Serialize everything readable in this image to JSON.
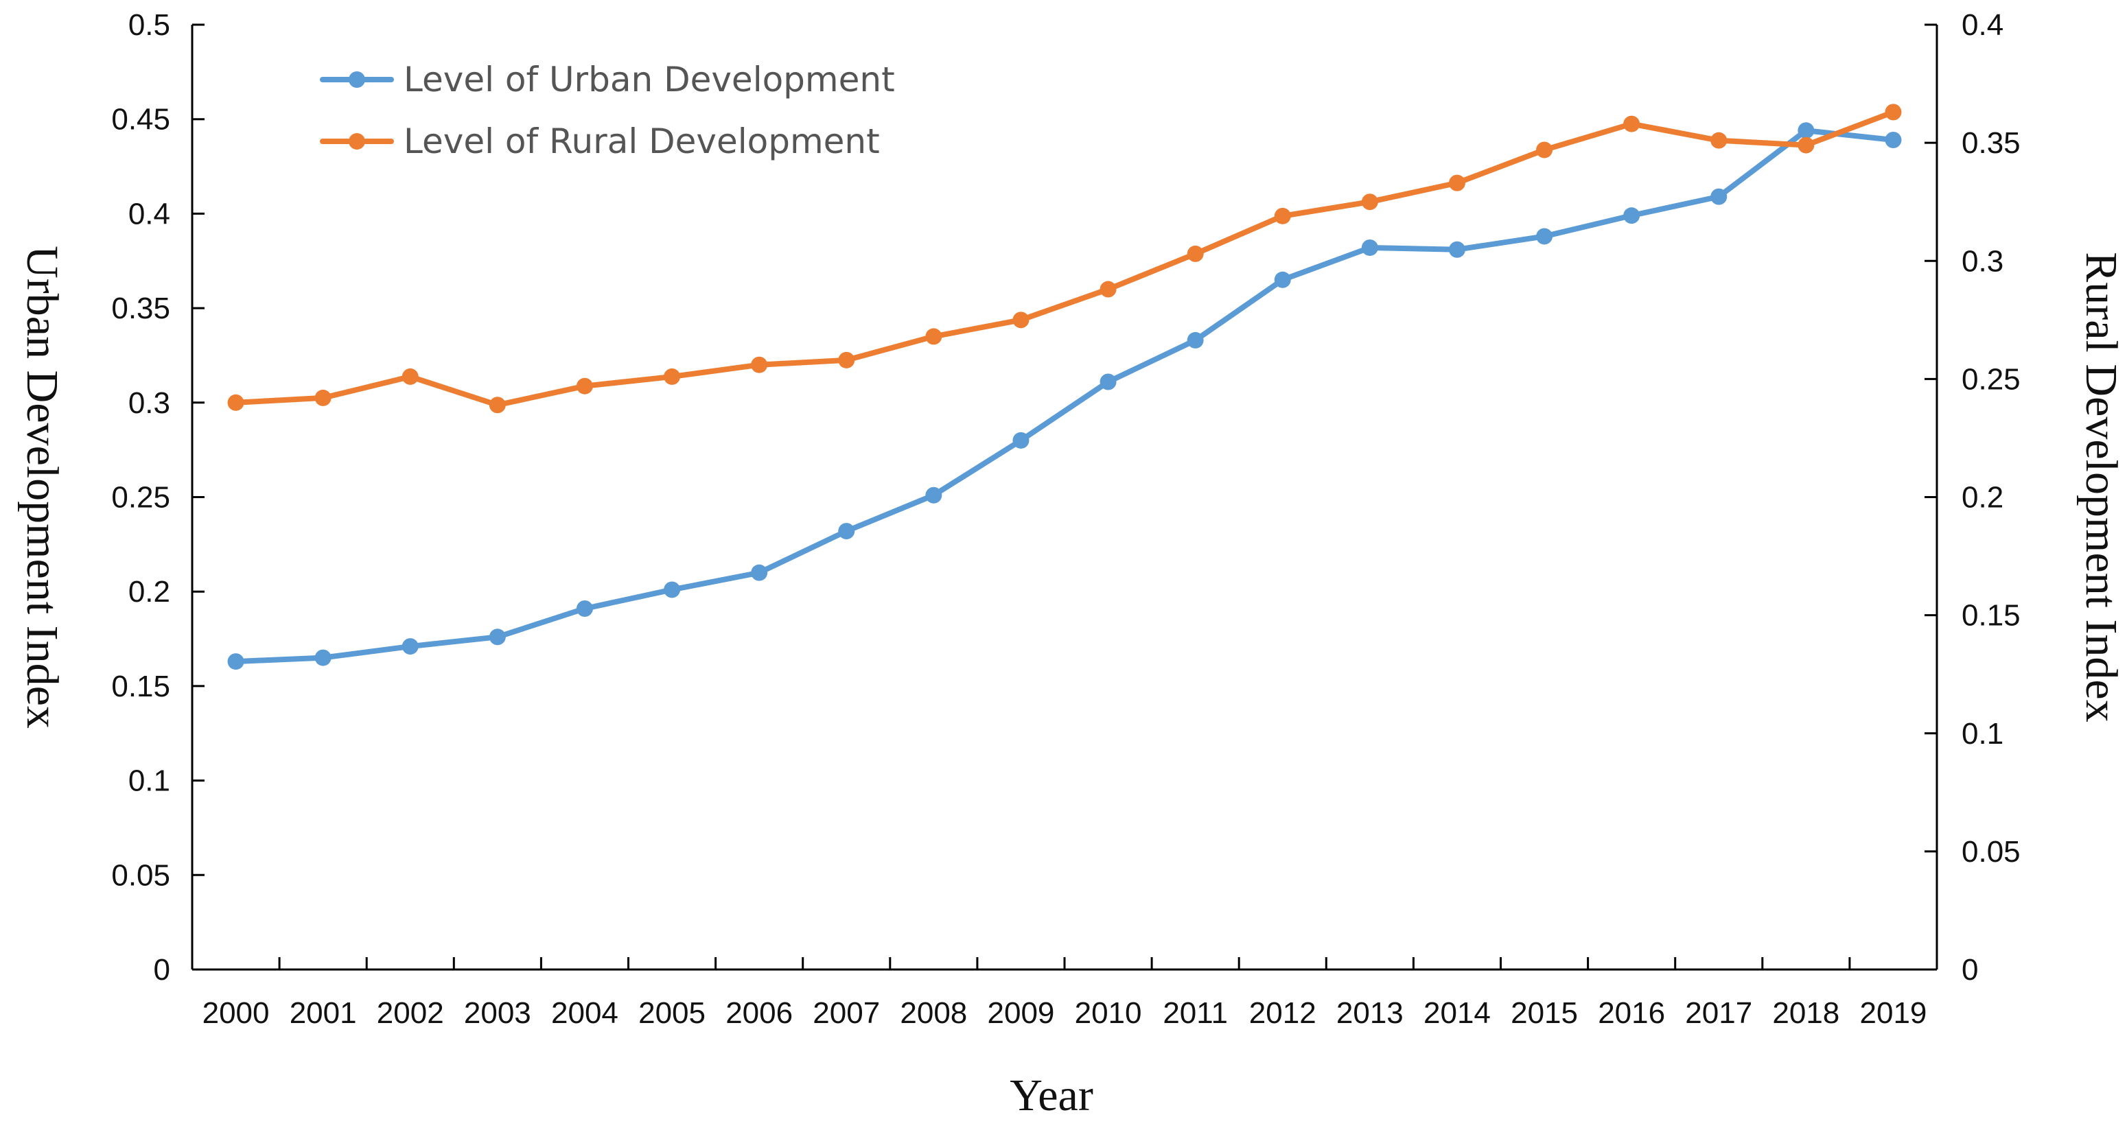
{
  "chart_data": {
    "type": "line",
    "title": "",
    "xlabel": "Year",
    "ylabel_left": "Urban Development Index",
    "ylabel_right": "Rural Development Index",
    "categories": [
      "2000",
      "2001",
      "2002",
      "2003",
      "2004",
      "2005",
      "2006",
      "2007",
      "2008",
      "2009",
      "2010",
      "2011",
      "2012",
      "2013",
      "2014",
      "2015",
      "2016",
      "2017",
      "2018",
      "2019"
    ],
    "y_left": {
      "min": 0,
      "max": 0.5,
      "ticks": [
        "0",
        "0.05",
        "0.1",
        "0.15",
        "0.2",
        "0.25",
        "0.3",
        "0.35",
        "0.4",
        "0.45",
        "0.5"
      ]
    },
    "y_right": {
      "min": 0,
      "max": 0.4,
      "ticks": [
        "0",
        "0.05",
        "0.1",
        "0.15",
        "0.2",
        "0.25",
        "0.3",
        "0.35",
        "0.4"
      ]
    },
    "grid": false,
    "legend_position": "top-left",
    "series": [
      {
        "name": "Level of Urban Development",
        "axis": "left",
        "color": "#5B9BD5",
        "values": [
          0.163,
          0.165,
          0.171,
          0.176,
          0.191,
          0.201,
          0.21,
          0.232,
          0.251,
          0.28,
          0.311,
          0.333,
          0.365,
          0.382,
          0.381,
          0.388,
          0.399,
          0.409,
          0.444,
          0.439
        ]
      },
      {
        "name": "Level of Rural Development",
        "axis": "right",
        "color": "#ED7D31",
        "values": [
          0.24,
          0.242,
          0.251,
          0.239,
          0.247,
          0.251,
          0.256,
          0.258,
          0.268,
          0.275,
          0.288,
          0.303,
          0.319,
          0.325,
          0.333,
          0.347,
          0.358,
          0.351,
          0.349,
          0.363
        ]
      }
    ]
  }
}
